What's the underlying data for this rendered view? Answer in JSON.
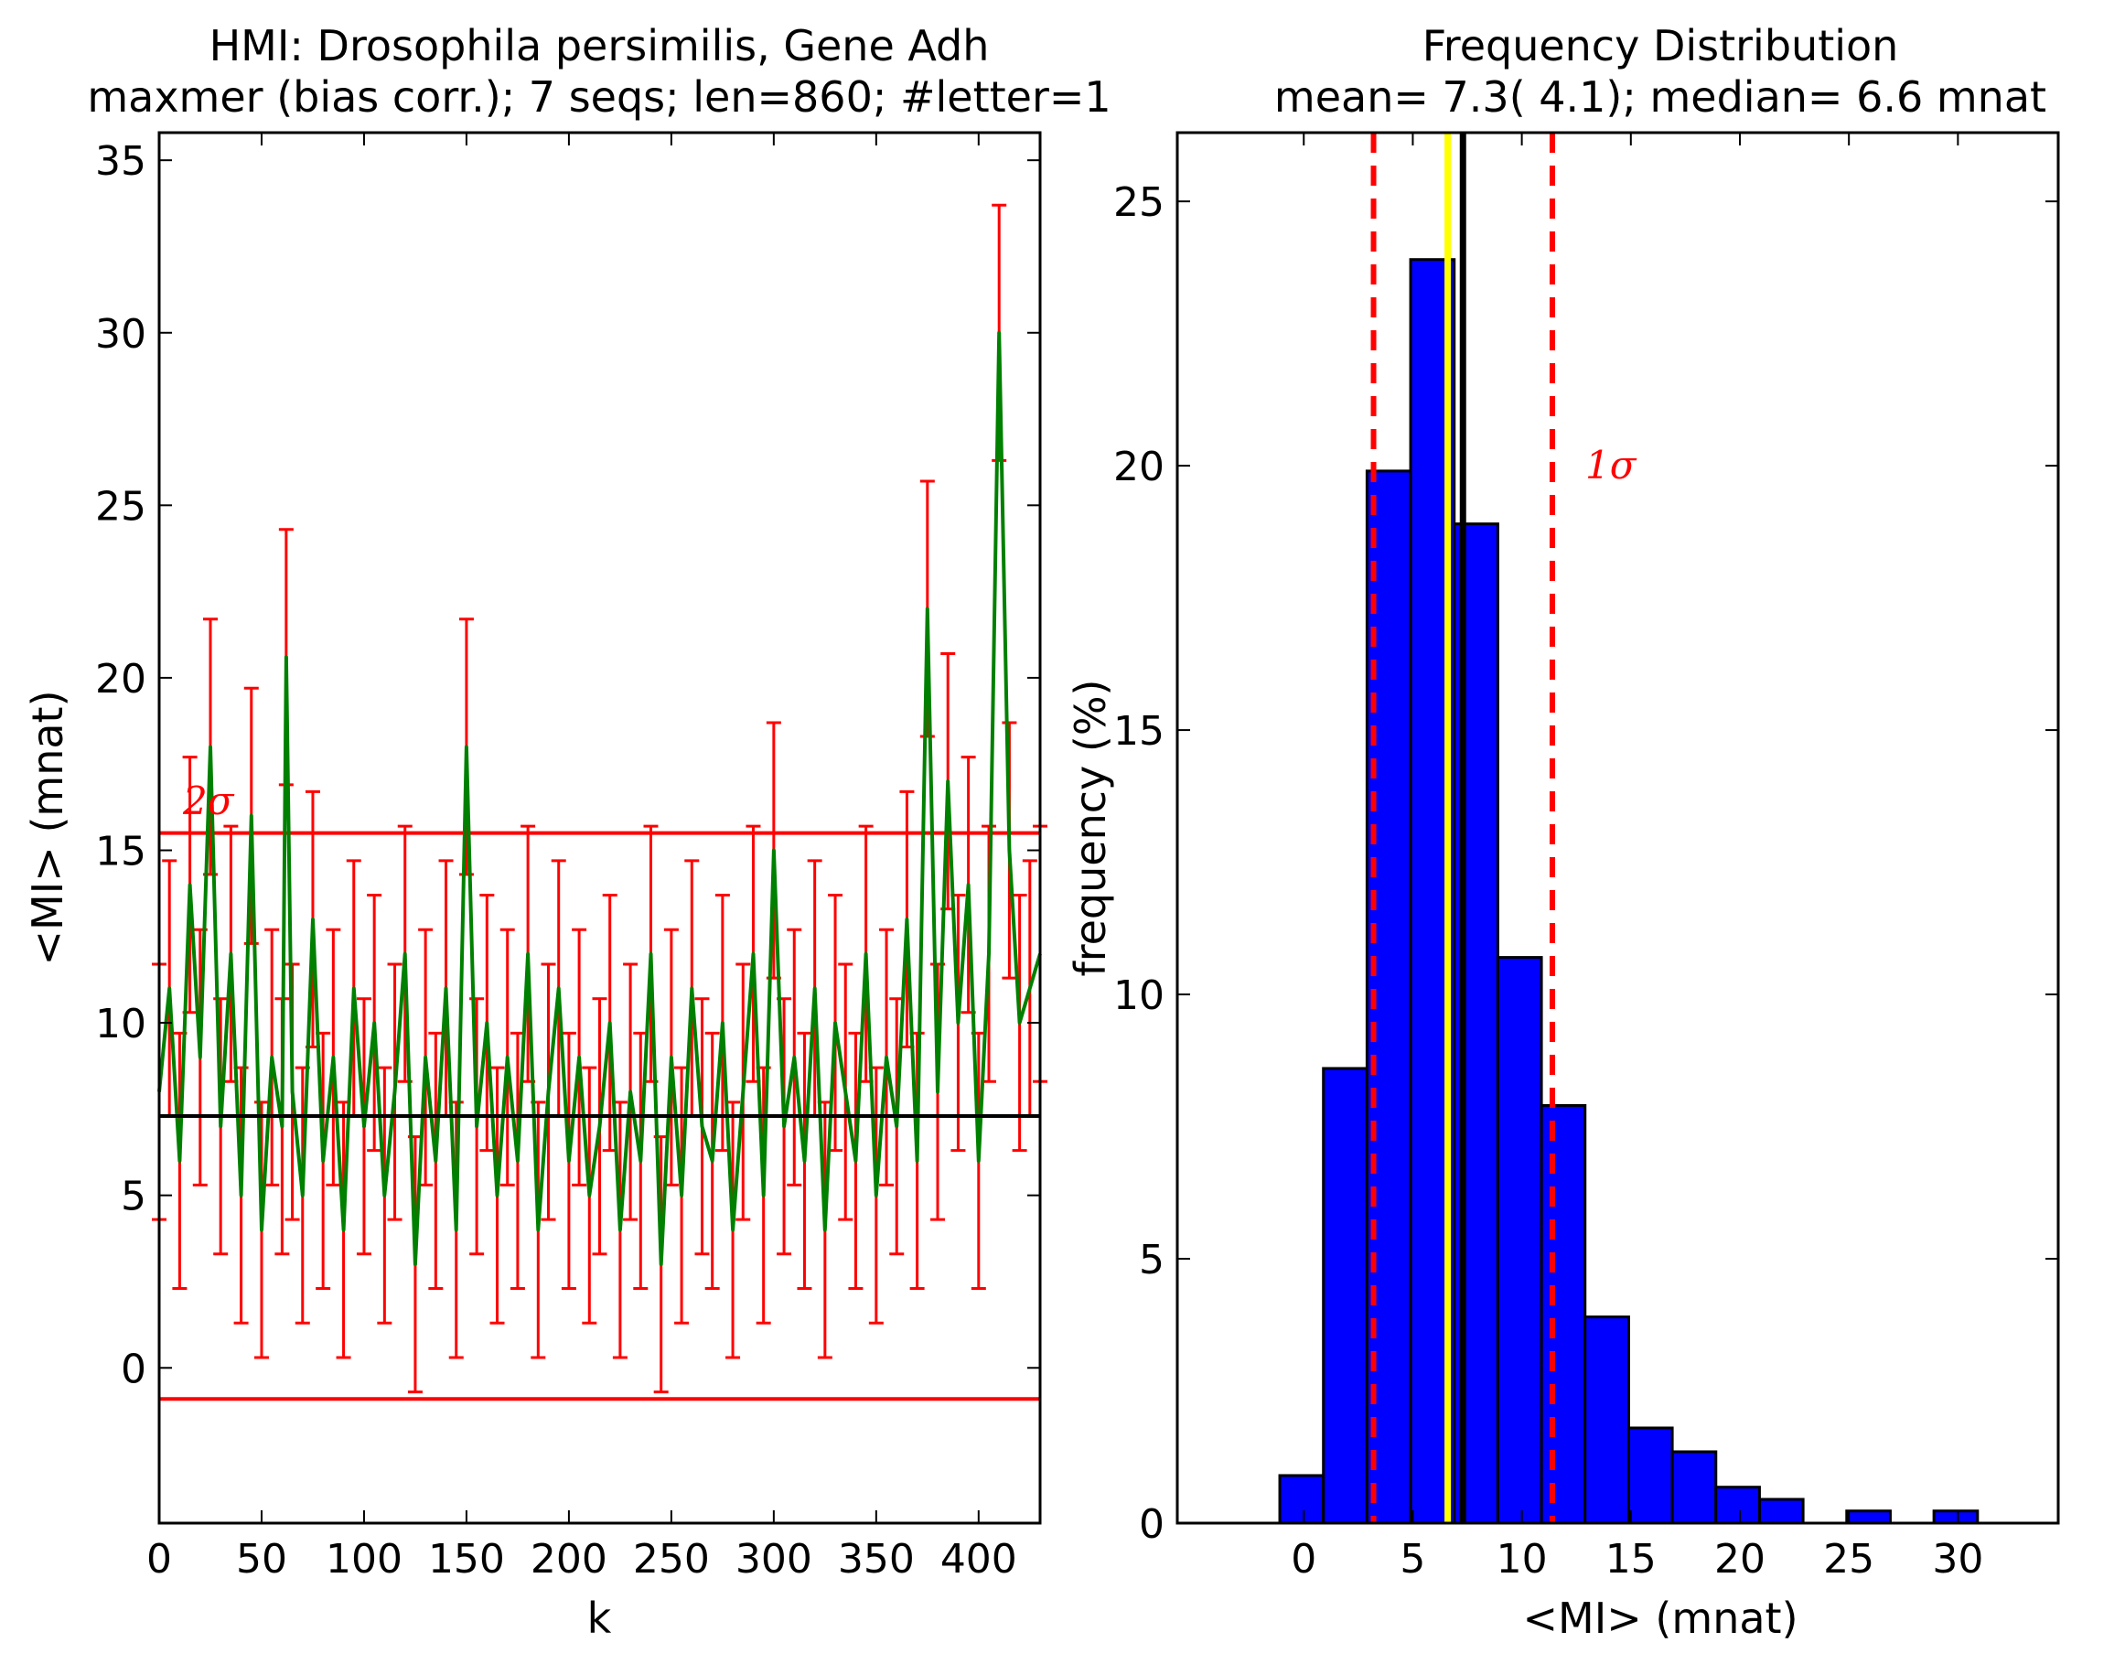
{
  "chart_data": [
    {
      "type": "line",
      "title": "HMI: Drosophila persimilis, Gene Adh",
      "subtitle": "maxmer (bias corr.); 7 seqs; len=860; #letter=1",
      "xlabel": "k",
      "ylabel": "<MI> (mnat)",
      "xlim": [
        0,
        430
      ],
      "ylim": [
        -4.5,
        35.8
      ],
      "xticks": [
        "0",
        "50",
        "100",
        "150",
        "200",
        "250",
        "300",
        "350",
        "400"
      ],
      "yticks": [
        "0",
        "5",
        "10",
        "15",
        "20",
        "25",
        "30",
        "35"
      ],
      "grid": false,
      "mean_line": 7.3,
      "upper_2sigma": 15.5,
      "lower_2sigma": -0.9,
      "annotation": "2σ",
      "errorbar_halfwidth": 3.7,
      "series": [
        {
          "x": [
            0,
            5,
            10,
            15,
            20,
            25,
            30,
            35,
            40,
            45,
            50,
            55,
            60,
            62,
            65,
            70,
            75,
            80,
            85,
            90,
            95,
            100,
            105,
            110,
            115,
            120,
            125,
            130,
            135,
            140,
            145,
            150,
            155,
            160,
            165,
            170,
            175,
            180,
            185,
            190,
            195,
            200,
            205,
            210,
            215,
            220,
            225,
            230,
            235,
            240,
            245,
            250,
            255,
            260,
            265,
            270,
            275,
            280,
            285,
            290,
            295,
            300,
            305,
            310,
            315,
            320,
            325,
            330,
            335,
            340,
            345,
            350,
            355,
            360,
            365,
            370,
            375,
            380,
            385,
            390,
            395,
            400,
            405,
            410,
            415,
            420,
            425,
            430
          ],
          "values": [
            8,
            11,
            6,
            14,
            9,
            18,
            7,
            12,
            5,
            16,
            4,
            9,
            7,
            20.6,
            8,
            5,
            13,
            6,
            9,
            4,
            11,
            7,
            10,
            5,
            8,
            12,
            3,
            9,
            6,
            11,
            4,
            18,
            7,
            10,
            5,
            9,
            6,
            12,
            4,
            8,
            11,
            6,
            9,
            5,
            7,
            10,
            4,
            8,
            6,
            12,
            3,
            9,
            5,
            11,
            7,
            6,
            10,
            4,
            8,
            12,
            5,
            15,
            7,
            9,
            6,
            11,
            4,
            10,
            8,
            6,
            12,
            5,
            9,
            7,
            13,
            6,
            22,
            8,
            17,
            10,
            14,
            6,
            12,
            30,
            15,
            10,
            11,
            12
          ]
        }
      ]
    },
    {
      "type": "bar",
      "title": "Frequency Distribution",
      "subtitle": "mean=  7.3(  4.1); median=  6.6 mnat",
      "xlabel": "<MI> (mnat)",
      "ylabel": "frequency (%)",
      "xlim": [
        -5.8,
        34.6
      ],
      "ylim": [
        0,
        26.3
      ],
      "xticks": [
        "0",
        "5",
        "10",
        "15",
        "20",
        "25",
        "30"
      ],
      "yticks": [
        "0",
        "5",
        "10",
        "15",
        "20",
        "25"
      ],
      "grid": false,
      "bin_edges": [
        -1.1,
        0.9,
        2.9,
        4.9,
        6.9,
        8.9,
        10.9,
        12.9,
        14.9,
        16.9,
        18.9,
        20.9,
        22.9,
        24.9,
        26.9,
        28.9,
        30.9
      ],
      "values": [
        0.9,
        8.6,
        19.9,
        23.9,
        18.9,
        10.7,
        7.9,
        3.9,
        1.8,
        1.35,
        0.68,
        0.45,
        0,
        0.23,
        0,
        0.23
      ],
      "mean": 7.3,
      "median": 6.6,
      "sigma_lines": [
        3.2,
        11.4
      ],
      "annotation": "1σ"
    }
  ],
  "colors": {
    "series_line": "#008000",
    "errorbar": "#ff0000",
    "sigma_line": "#ff0000",
    "mean_line": "#000000",
    "median_line": "#ffff00",
    "bar_fill": "#0000ff",
    "bar_edge": "#000000"
  }
}
